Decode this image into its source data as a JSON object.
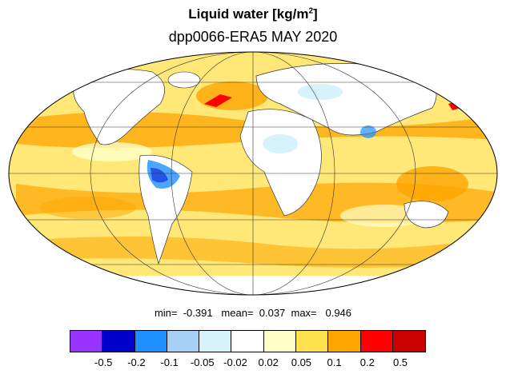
{
  "title": {
    "main": "Liquid water  [kg/m",
    "superscript": "2",
    "close": "]",
    "subtitle": "dpp0066-ERA5 MAY 2020"
  },
  "stats": {
    "text": "min=  -0.391   mean=  0.037  max=   0.946",
    "min": -0.391,
    "mean": 0.037,
    "max": 0.946
  },
  "colorbar": {
    "colors": [
      "#9933ff",
      "#0000cc",
      "#1e90ff",
      "#a6cff5",
      "#d6f2fa",
      "#ffffff",
      "#ffffc8",
      "#ffe14d",
      "#ffa500",
      "#ff0000",
      "#c80000"
    ],
    "tick_labels": [
      "-0.5",
      "-0.2",
      "-0.1",
      "-0.05",
      "-0.02",
      "0.02",
      "0.05",
      "0.1",
      "0.2",
      "0.5"
    ]
  },
  "map": {
    "projection": "mollweide",
    "field_colors": {
      "positive_light": "#ffffc8",
      "positive_mid": "#ffe14d",
      "positive_high": "#ffa500",
      "positive_max": "#ff0000",
      "negative_light": "#d6f2fa",
      "negative_mid": "#a6cff5",
      "negative_high": "#1e90ff"
    }
  }
}
